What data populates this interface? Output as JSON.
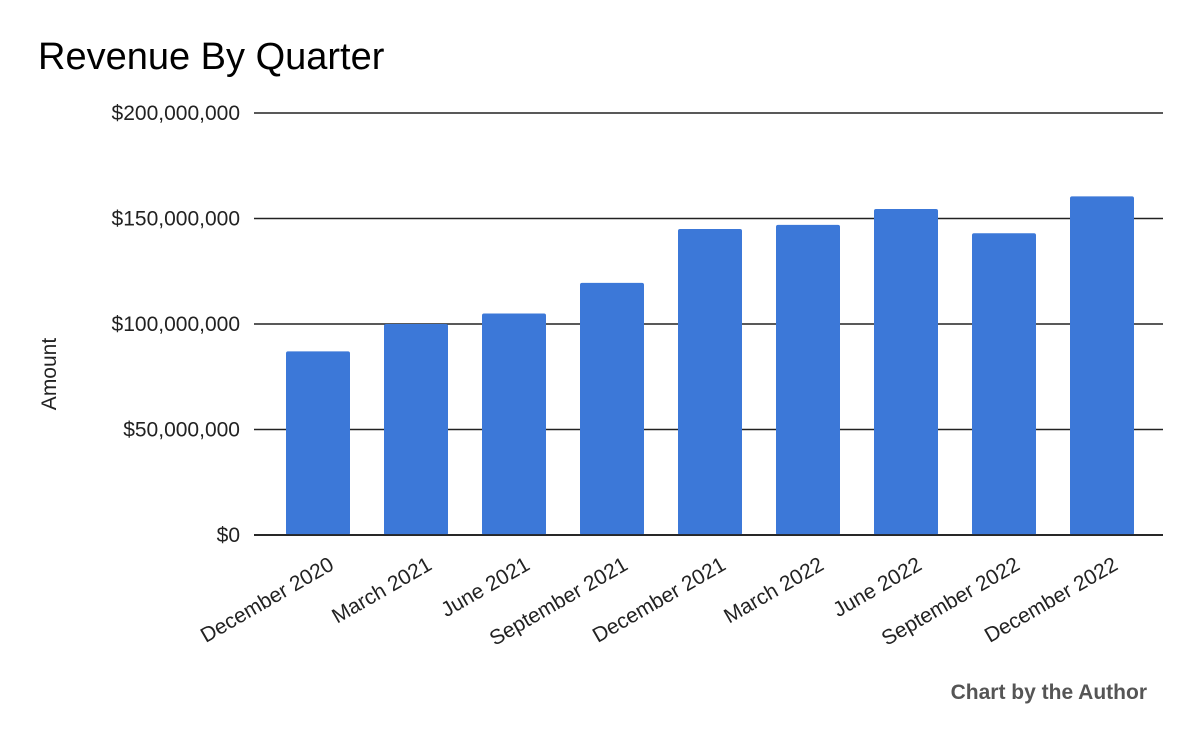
{
  "chart_data": {
    "type": "bar",
    "title": "Revenue By Quarter",
    "xlabel": "",
    "ylabel": "Amount",
    "categories": [
      "December 2020",
      "March 2021",
      "June 2021",
      "September 2021",
      "December 2021",
      "March 2022",
      "June 2022",
      "September 2022",
      "December 2022"
    ],
    "values": [
      87000000,
      100000000,
      105000000,
      119500000,
      145000000,
      147000000,
      154500000,
      143000000,
      160500000
    ],
    "ylim": [
      0,
      200000000
    ],
    "yticks": [
      0,
      50000000,
      100000000,
      150000000,
      200000000
    ],
    "ytick_labels": [
      "$0",
      "$50,000,000",
      "$100,000,000",
      "$150,000,000",
      "$200,000,000"
    ],
    "grid": true,
    "legend": "none",
    "bar_color": "#3c78d8"
  },
  "credit": "Chart by the Author"
}
